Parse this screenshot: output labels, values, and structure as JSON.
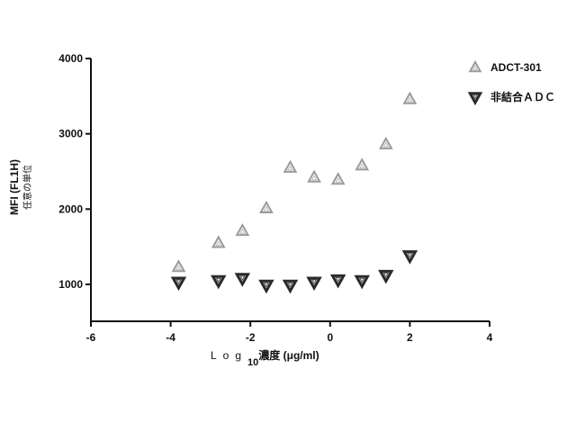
{
  "chart_data": {
    "type": "scatter",
    "xlabel": "Log",
    "xlabel_sub": "10",
    "xlabel_suffix": "濃度 (μg/ml)",
    "ylabel": "MFI (FL1H)",
    "ylabel2": "任意の単位",
    "xlim": [
      -6,
      4
    ],
    "ylim": [
      500,
      4000
    ],
    "xticks": [
      -6,
      -4,
      -2,
      0,
      2,
      4
    ],
    "yticks": [
      1000,
      2000,
      3000,
      4000
    ],
    "x_tick_labels": [
      "-6",
      "-4",
      "-2",
      "0",
      "2",
      "4"
    ],
    "y_tick_labels": [
      "1000",
      "2000",
      "3000",
      "4000"
    ],
    "legend_position": "top-right",
    "series": [
      {
        "name": "ADCT-301",
        "marker": "triangle-up",
        "color": "#9a9a9a",
        "x": [
          -3.8,
          -2.8,
          -2.2,
          -1.6,
          -1.0,
          -0.4,
          0.2,
          0.8,
          1.4,
          2.0
        ],
        "y": [
          1230,
          1550,
          1710,
          2010,
          2550,
          2420,
          2390,
          2580,
          2860,
          3460
        ]
      },
      {
        "name": "非結合ＡＤＣ",
        "marker": "triangle-down",
        "color": "#2a2a2a",
        "x": [
          -3.8,
          -2.8,
          -2.2,
          -1.6,
          -1.0,
          -0.4,
          0.2,
          0.8,
          1.4,
          2.0
        ],
        "y": [
          1030,
          1050,
          1080,
          990,
          990,
          1030,
          1060,
          1050,
          1120,
          1380
        ]
      }
    ]
  }
}
